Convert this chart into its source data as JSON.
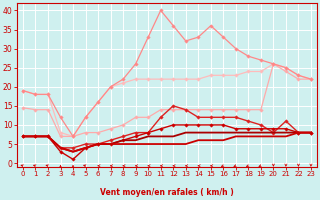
{
  "xlabel": "Vent moyen/en rafales ( km/h )",
  "xlim": [
    -0.5,
    23.5
  ],
  "ylim": [
    -1,
    42
  ],
  "yticks": [
    0,
    5,
    10,
    15,
    20,
    25,
    30,
    35,
    40
  ],
  "xticks": [
    0,
    1,
    2,
    3,
    4,
    5,
    6,
    7,
    8,
    9,
    10,
    11,
    12,
    13,
    14,
    15,
    16,
    17,
    18,
    19,
    20,
    21,
    22,
    23
  ],
  "bg_color": "#cff0ef",
  "grid_color": "#ffffff",
  "line_color": "#cc0000",
  "lines": [
    {
      "x": [
        0,
        1,
        2,
        3,
        4,
        5,
        6,
        7,
        8,
        9,
        10,
        11,
        12,
        13,
        14,
        15,
        16,
        17,
        18,
        19,
        20,
        21,
        22,
        23
      ],
      "y": [
        14.5,
        14,
        14,
        7,
        7,
        8,
        8,
        9,
        10,
        12,
        12,
        14,
        14,
        14,
        14,
        14,
        14,
        14,
        14,
        14,
        26,
        24,
        22,
        22
      ],
      "color": "#ffaaaa",
      "lw": 0.9,
      "marker": true
    },
    {
      "x": [
        0,
        1,
        2,
        3,
        4,
        5,
        6,
        7,
        8,
        9,
        10,
        11,
        12,
        13,
        14,
        15,
        16,
        17,
        18,
        19,
        20,
        21,
        22,
        23
      ],
      "y": [
        19,
        18,
        18,
        8,
        7,
        12,
        16,
        20,
        21,
        22,
        22,
        22,
        22,
        22,
        22,
        23,
        23,
        23,
        24,
        24,
        26,
        25,
        23,
        22
      ],
      "color": "#ffbbbb",
      "lw": 0.9,
      "marker": true
    },
    {
      "x": [
        0,
        1,
        2,
        3,
        4,
        5,
        6,
        7,
        8,
        9,
        10,
        11,
        12,
        13,
        14,
        15,
        16,
        17,
        18,
        19,
        20,
        21,
        22,
        23
      ],
      "y": [
        19,
        18,
        18,
        12,
        7,
        12,
        16,
        20,
        22,
        26,
        33,
        40,
        36,
        32,
        33,
        36,
        33,
        30,
        28,
        27,
        26,
        25,
        23,
        22
      ],
      "color": "#ff8888",
      "lw": 0.9,
      "marker": true
    },
    {
      "x": [
        0,
        1,
        2,
        3,
        4,
        5,
        6,
        7,
        8,
        9,
        10,
        11,
        12,
        13,
        14,
        15,
        16,
        17,
        18,
        19,
        20,
        21,
        22,
        23
      ],
      "y": [
        7,
        7,
        7,
        4,
        4,
        5,
        5,
        6,
        7,
        8,
        8,
        12,
        15,
        14,
        12,
        12,
        12,
        12,
        11,
        10,
        8,
        11,
        8,
        8
      ],
      "color": "#dd2222",
      "lw": 1.0,
      "marker": true
    },
    {
      "x": [
        0,
        1,
        2,
        3,
        4,
        5,
        6,
        7,
        8,
        9,
        10,
        11,
        12,
        13,
        14,
        15,
        16,
        17,
        18,
        19,
        20,
        21,
        22,
        23
      ],
      "y": [
        7,
        7,
        7,
        3,
        1,
        4,
        5,
        5,
        6,
        7,
        8,
        9,
        10,
        10,
        10,
        10,
        10,
        9,
        9,
        9,
        9,
        9,
        8,
        8
      ],
      "color": "#cc0000",
      "lw": 1.0,
      "marker": true
    },
    {
      "x": [
        0,
        1,
        2,
        3,
        4,
        5,
        6,
        7,
        8,
        9,
        10,
        11,
        12,
        13,
        14,
        15,
        16,
        17,
        18,
        19,
        20,
        21,
        22,
        23
      ],
      "y": [
        7,
        7,
        7,
        4,
        3,
        4,
        5,
        5,
        6,
        6,
        7,
        7,
        7,
        8,
        8,
        8,
        8,
        8,
        8,
        8,
        8,
        8,
        8,
        8
      ],
      "color": "#aa0000",
      "lw": 1.3,
      "marker": false
    },
    {
      "x": [
        0,
        1,
        2,
        3,
        4,
        5,
        6,
        7,
        8,
        9,
        10,
        11,
        12,
        13,
        14,
        15,
        16,
        17,
        18,
        19,
        20,
        21,
        22,
        23
      ],
      "y": [
        7,
        7,
        7,
        4,
        3,
        4,
        5,
        5,
        5,
        5,
        5,
        5,
        5,
        5,
        6,
        6,
        6,
        7,
        7,
        7,
        7,
        7,
        8,
        8
      ],
      "color": "#cc0000",
      "lw": 1.3,
      "marker": false
    }
  ],
  "wind_arrows": {
    "angles": [
      225,
      225,
      225,
      180,
      180,
      225,
      270,
      270,
      270,
      270,
      270,
      270,
      270,
      270,
      270,
      270,
      315,
      315,
      315,
      315,
      0,
      0,
      0,
      0
    ],
    "color": "#cc0000"
  }
}
